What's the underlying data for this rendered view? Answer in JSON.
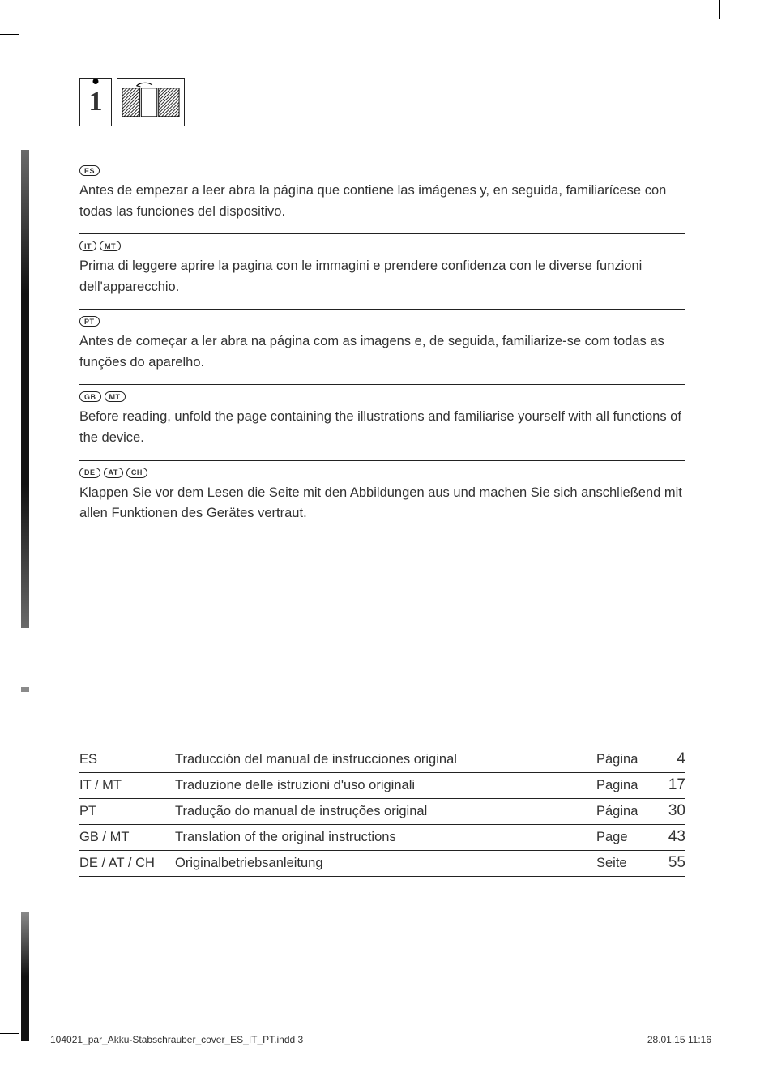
{
  "notices": [
    {
      "langs": [
        "ES"
      ],
      "text": "Antes de empezar a leer abra la página que contiene las imágenes y, en seguida, familiarícese con todas las funciones del dispositivo."
    },
    {
      "langs": [
        "IT",
        "MT"
      ],
      "text": "Prima di leggere aprire la pagina con le immagini e prendere confidenza con le diverse funzioni dell'apparecchio."
    },
    {
      "langs": [
        "PT"
      ],
      "text": "Antes de começar a ler abra na página com as imagens e, de seguida, familiarize-se com todas as funções do aparelho."
    },
    {
      "langs": [
        "GB",
        "MT"
      ],
      "text": "Before reading, unfold the page containing the illustrations and familiarise yourself with all functions of the device."
    },
    {
      "langs": [
        "DE",
        "AT",
        "CH"
      ],
      "text": "Klappen Sie vor dem Lesen die Seite mit den Abbildungen aus und machen Sie sich anschließend mit allen Funktionen des Gerätes vertraut."
    }
  ],
  "toc": [
    {
      "lang": "ES",
      "title": "Traducción del manual de instrucciones original",
      "pagelabel": "Página",
      "page": "4"
    },
    {
      "lang": "IT / MT",
      "title": "Traduzione delle istruzioni d'uso originali",
      "pagelabel": "Pagina",
      "page": "17"
    },
    {
      "lang": "PT",
      "title": "Tradução do manual de instruções original",
      "pagelabel": "Página",
      "page": "30"
    },
    {
      "lang": "GB / MT",
      "title": "Translation of the original instructions",
      "pagelabel": "Page",
      "page": "43"
    },
    {
      "lang": "DE / AT / CH",
      "title": "Originalbetriebsanleitung",
      "pagelabel": "Seite",
      "page": "55"
    }
  ],
  "footer": {
    "file": "104021_par_Akku-Stabschrauber_cover_ES_IT_PT.indd   3",
    "date": "28.01.15   11:16"
  }
}
